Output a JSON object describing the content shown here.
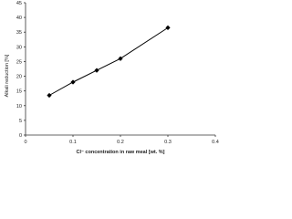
{
  "chart_data": {
    "type": "line",
    "x_label": "Cl⁻ concentration in raw meal [wt. %]",
    "y_label": "Alkali reduction [%]",
    "x": [
      0.05,
      0.1,
      0.15,
      0.2,
      0.3
    ],
    "values": [
      13.5,
      18,
      22,
      26,
      36.5
    ],
    "color": "#000000",
    "xlim": [
      0,
      0.4
    ],
    "xticks": [
      0,
      0.1,
      0.2,
      0.3,
      0.4
    ],
    "ylim": [
      0,
      45
    ],
    "yticks": [
      0,
      5,
      10,
      15,
      20,
      25,
      30,
      35,
      40,
      45
    ]
  }
}
